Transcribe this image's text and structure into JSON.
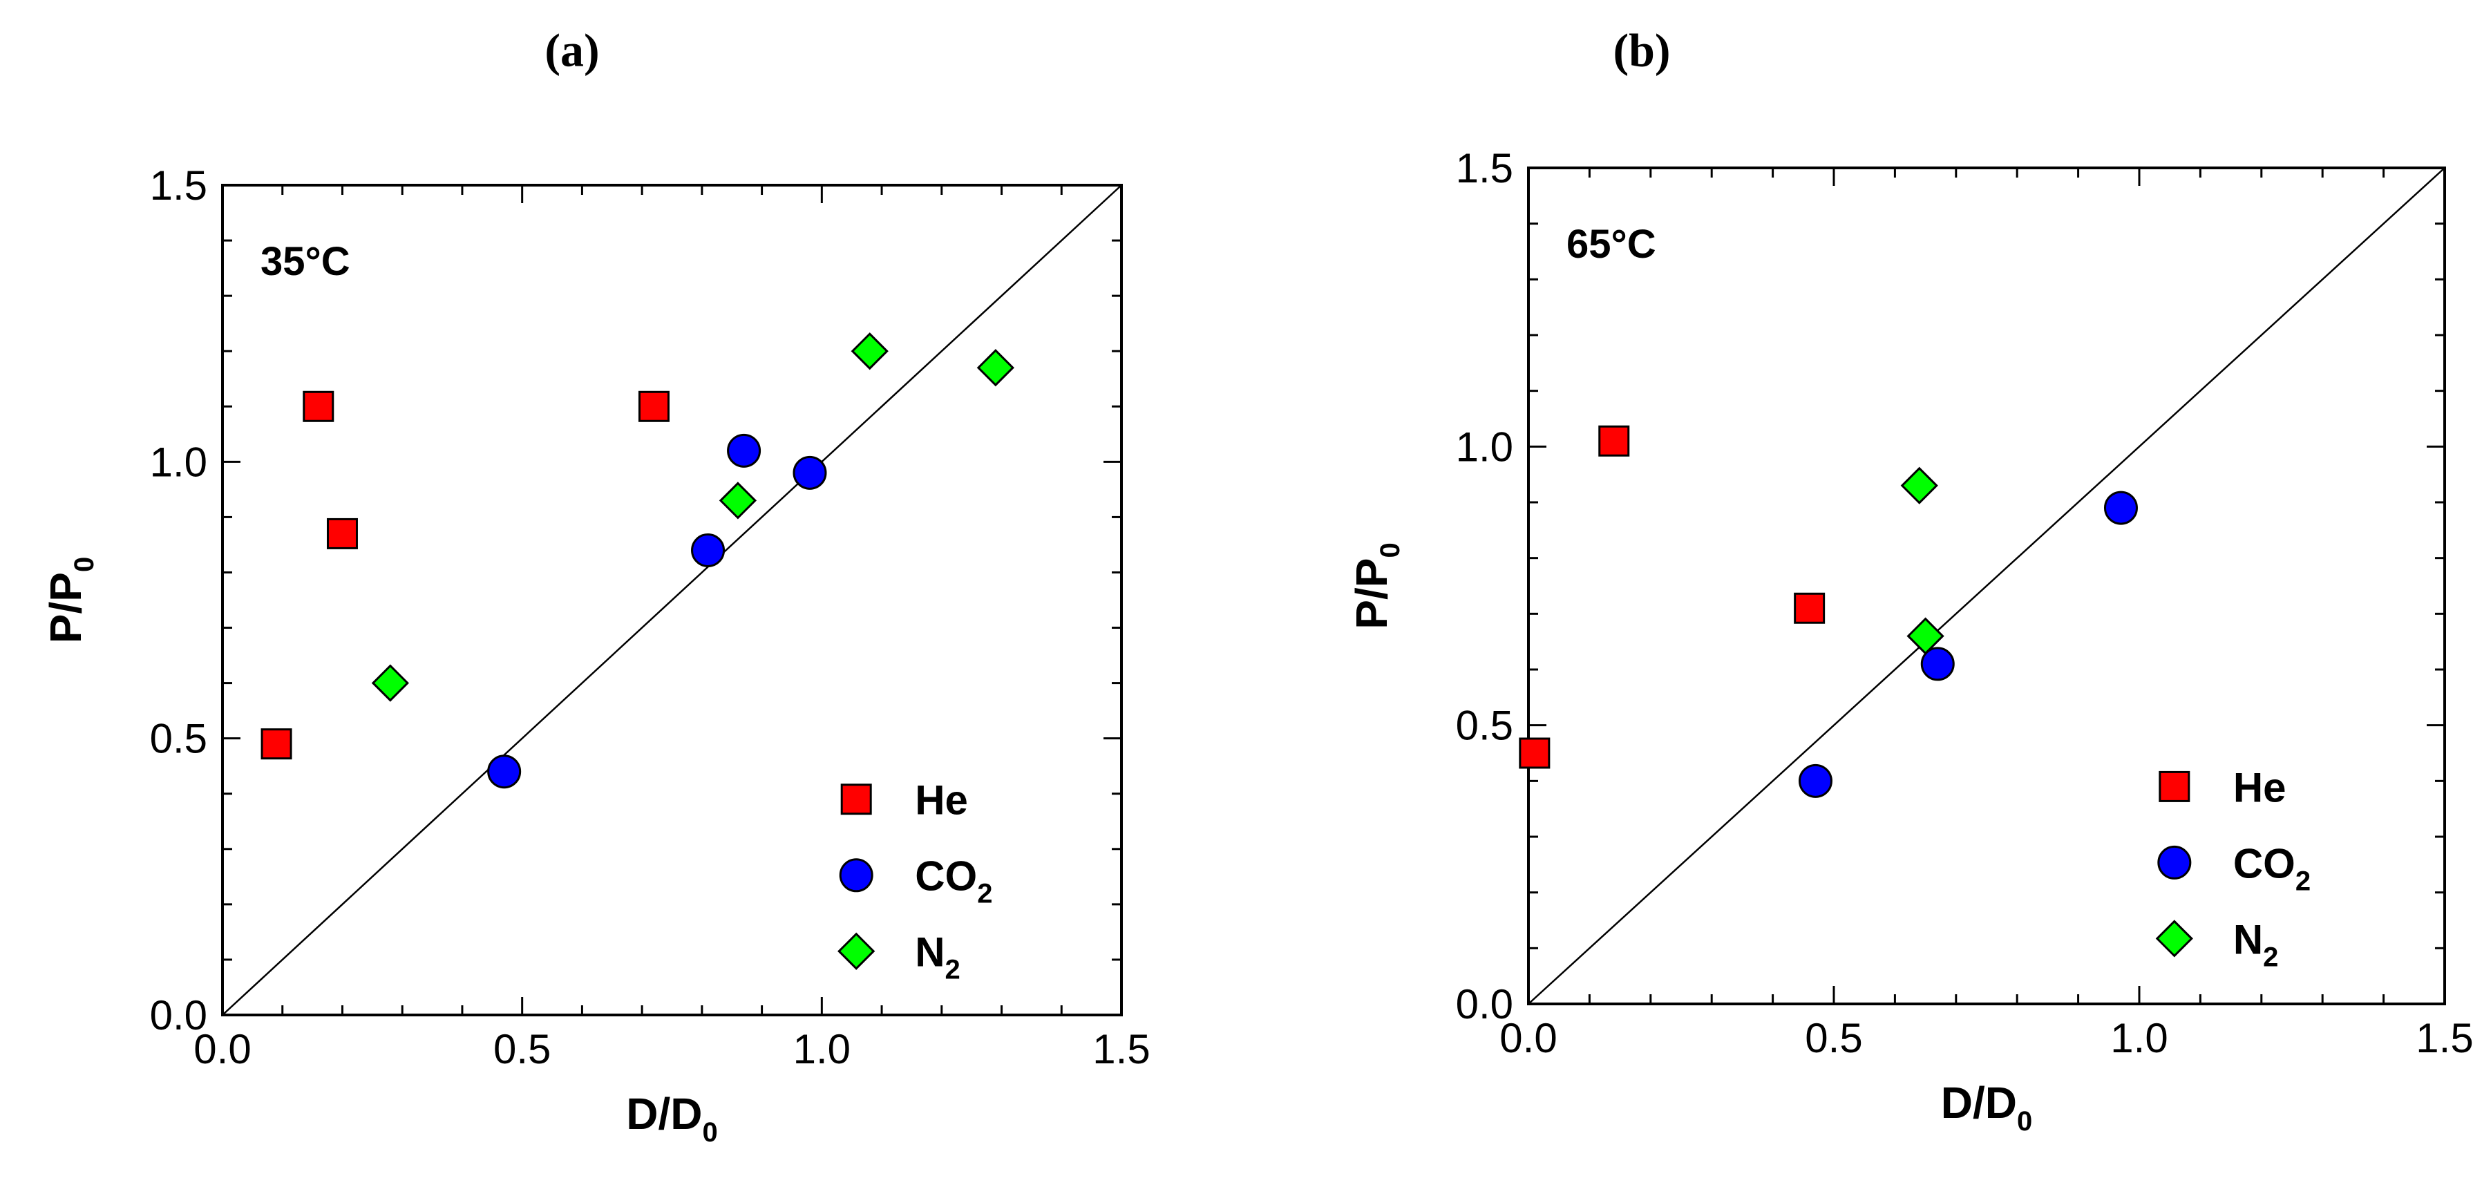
{
  "chart_data": [
    {
      "type": "scatter",
      "panel_label": "(a)",
      "annotation": "35°C",
      "xlabel": {
        "main": "D/D",
        "sub": "0"
      },
      "ylabel": {
        "main": "P/P",
        "sub": "0"
      },
      "xlim": [
        0.0,
        1.5
      ],
      "ylim": [
        0.0,
        1.5
      ],
      "xticks": [
        "0.0",
        "0.5",
        "1.0",
        "1.5"
      ],
      "yticks": [
        "0.0",
        "0.5",
        "1.0",
        "1.5"
      ],
      "reference_line": "y = x",
      "legend_position": "bottom-right",
      "series": [
        {
          "name": "He",
          "sub": "",
          "marker": "square",
          "color": "#ff0000",
          "points": [
            [
              0.09,
              0.49
            ],
            [
              0.16,
              1.1
            ],
            [
              0.2,
              0.87
            ],
            [
              0.72,
              1.1
            ]
          ]
        },
        {
          "name": "CO",
          "sub": "2",
          "marker": "circle",
          "color": "#0000ff",
          "points": [
            [
              0.47,
              0.44
            ],
            [
              0.81,
              0.84
            ],
            [
              0.87,
              1.02
            ],
            [
              0.98,
              0.98
            ]
          ]
        },
        {
          "name": "N",
          "sub": "2",
          "marker": "diamond",
          "color": "#00ff00",
          "points": [
            [
              0.28,
              0.6
            ],
            [
              0.86,
              0.93
            ],
            [
              1.08,
              1.2
            ],
            [
              1.29,
              1.17
            ]
          ]
        }
      ]
    },
    {
      "type": "scatter",
      "panel_label": "(b)",
      "annotation": "65°C",
      "xlabel": {
        "main": "D/D",
        "sub": "0"
      },
      "ylabel": {
        "main": "P/P",
        "sub": "0"
      },
      "xlim": [
        0.0,
        1.5
      ],
      "ylim": [
        0.0,
        1.5
      ],
      "xticks": [
        "0.0",
        "0.5",
        "1.0",
        "1.5"
      ],
      "yticks": [
        "0.0",
        "0.5",
        "1.0",
        "1.5"
      ],
      "reference_line": "y = x",
      "legend_position": "bottom-right",
      "series": [
        {
          "name": "He",
          "sub": "",
          "marker": "square",
          "color": "#ff0000",
          "points": [
            [
              0.01,
              0.45
            ],
            [
              0.14,
              1.01
            ],
            [
              0.46,
              0.71
            ]
          ]
        },
        {
          "name": "CO",
          "sub": "2",
          "marker": "circle",
          "color": "#0000ff",
          "points": [
            [
              0.47,
              0.4
            ],
            [
              0.67,
              0.61
            ],
            [
              0.97,
              0.89
            ]
          ]
        },
        {
          "name": "N",
          "sub": "2",
          "marker": "diamond",
          "color": "#00ff00",
          "points": [
            [
              0.64,
              0.93
            ],
            [
              0.65,
              0.66
            ]
          ]
        }
      ]
    }
  ]
}
